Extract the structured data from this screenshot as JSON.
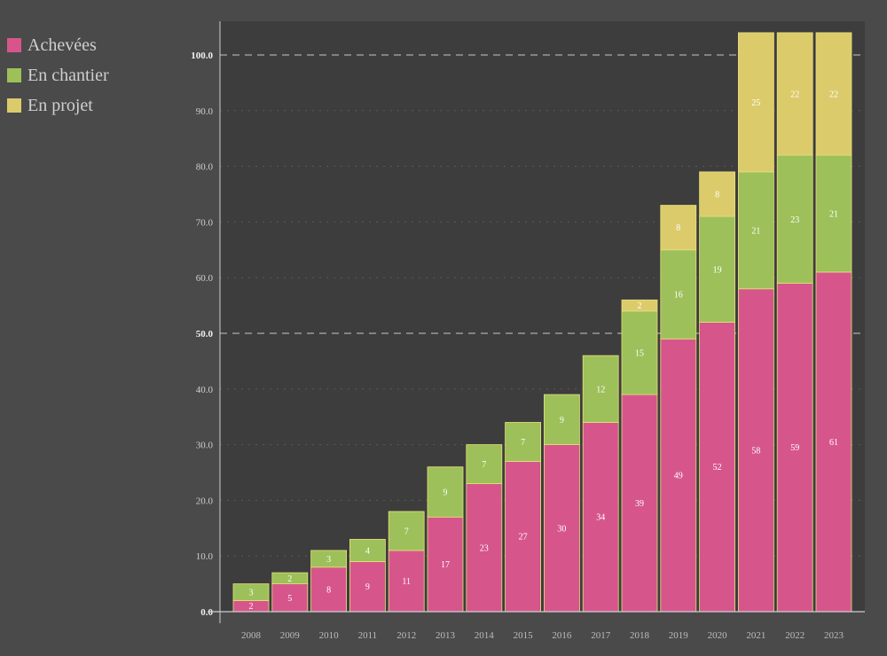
{
  "chart_data": {
    "type": "bar",
    "stacked": true,
    "categories": [
      "2008",
      "2009",
      "2010",
      "2011",
      "2012",
      "2013",
      "2014",
      "2015",
      "2016",
      "2017",
      "2018",
      "2019",
      "2020",
      "2021",
      "2022",
      "2023"
    ],
    "series": [
      {
        "name": "Achevées",
        "color": "#d6568b",
        "values": [
          2,
          5,
          8,
          9,
          11,
          17,
          23,
          27,
          30,
          34,
          39,
          49,
          52,
          58,
          59,
          61
        ]
      },
      {
        "name": "En chantier",
        "color": "#9dc05a",
        "values": [
          3,
          2,
          3,
          4,
          7,
          9,
          7,
          7,
          9,
          12,
          15,
          16,
          19,
          21,
          23,
          21
        ]
      },
      {
        "name": "En projet",
        "color": "#dccb6b",
        "values": [
          0,
          0,
          0,
          0,
          0,
          0,
          0,
          0,
          0,
          0,
          2,
          8,
          8,
          25,
          22,
          22
        ]
      }
    ],
    "yticks": [
      "0.0",
      "10.0",
      "20.0",
      "30.0",
      "40.0",
      "50.0",
      "60.0",
      "70.0",
      "80.0",
      "90.0",
      "100.0"
    ],
    "ylim": [
      0,
      104
    ],
    "legend_position": "top-left",
    "grid_dashed_at": [
      50,
      100
    ],
    "colors": {
      "background": "#4a4a4a",
      "plot_background": "#3d3d3d",
      "text": "#cfcfcf"
    }
  }
}
